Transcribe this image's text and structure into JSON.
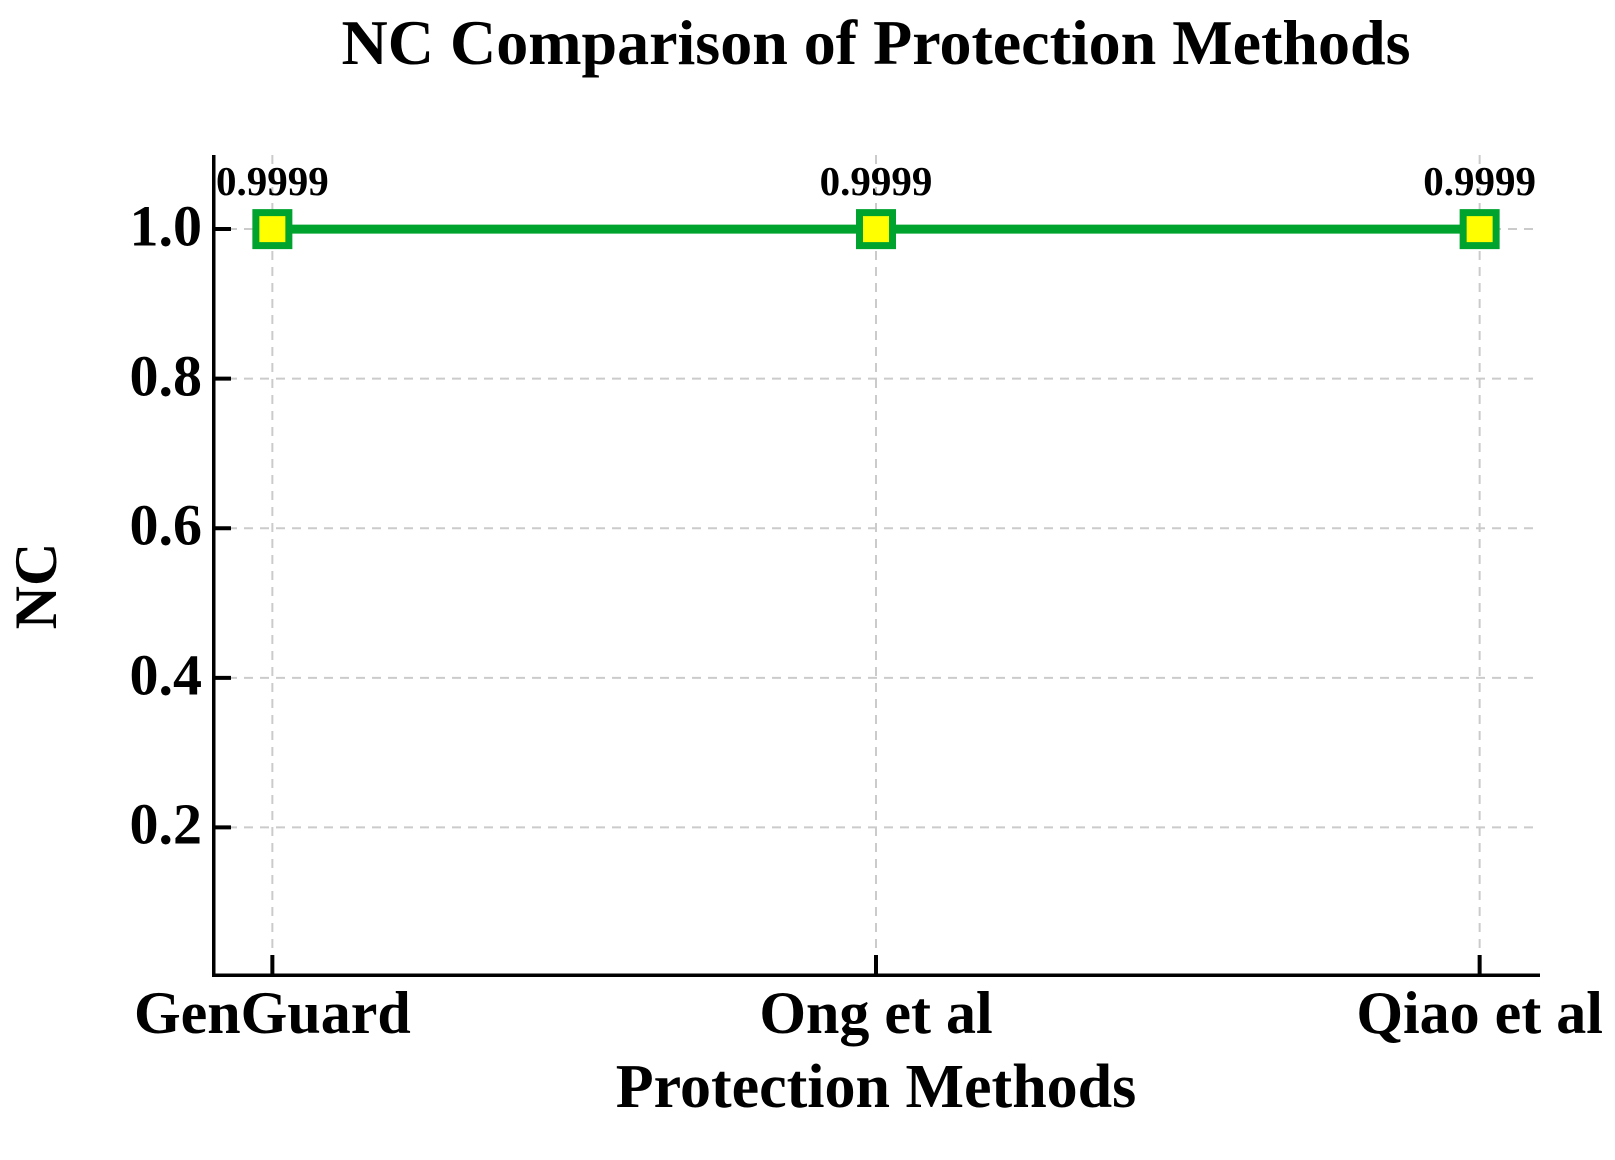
{
  "chart_data": {
    "type": "line",
    "title": "NC Comparison of Protection Methods",
    "xlabel": "Protection Methods",
    "ylabel": "NC",
    "categories": [
      "GenGuard",
      "Ong et al",
      "Qiao et al"
    ],
    "series": [
      {
        "name": "NC",
        "values": [
          0.9999,
          0.9999,
          0.9999
        ],
        "data_labels": [
          "0.9999",
          "0.9999",
          "0.9999"
        ]
      }
    ],
    "yticks": [
      0.2,
      0.4,
      0.6,
      0.8,
      1.0
    ],
    "ytick_labels": [
      "0.2",
      "0.4",
      "0.6",
      "0.8",
      "1.0"
    ],
    "ylim": [
      0,
      1.099
    ],
    "grid": "dashed",
    "legend": "none",
    "colors": {
      "line": "#00a32e",
      "marker_fill": "#ffff00",
      "marker_edge": "#00a32e",
      "grid": "#cbcbcb",
      "axis": "#000000",
      "text": "#000000",
      "background": "#ffffff"
    }
  }
}
